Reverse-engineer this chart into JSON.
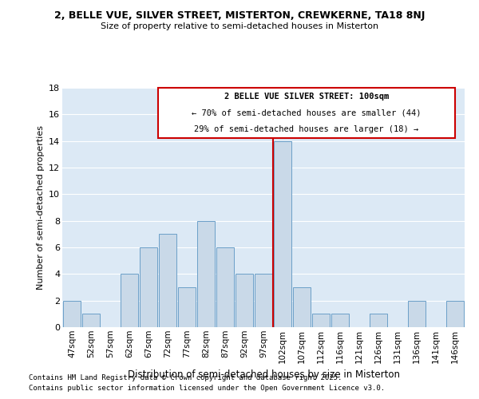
{
  "title1": "2, BELLE VUE, SILVER STREET, MISTERTON, CREWKERNE, TA18 8NJ",
  "title2": "Size of property relative to semi-detached houses in Misterton",
  "xlabel": "Distribution of semi-detached houses by size in Misterton",
  "ylabel": "Number of semi-detached properties",
  "categories": [
    "47sqm",
    "52sqm",
    "57sqm",
    "62sqm",
    "67sqm",
    "72sqm",
    "77sqm",
    "82sqm",
    "87sqm",
    "92sqm",
    "97sqm",
    "102sqm",
    "107sqm",
    "112sqm",
    "116sqm",
    "121sqm",
    "126sqm",
    "131sqm",
    "136sqm",
    "141sqm",
    "146sqm"
  ],
  "values": [
    2,
    1,
    0,
    4,
    6,
    7,
    3,
    8,
    6,
    4,
    4,
    14,
    3,
    1,
    1,
    0,
    1,
    0,
    2,
    0,
    2
  ],
  "bar_color": "#c9d9e8",
  "bar_edgecolor": "#6b9fc8",
  "vline_index": 11,
  "vline_color": "#cc0000",
  "annotation_title": "2 BELLE VUE SILVER STREET: 100sqm",
  "annotation_line2": "← 70% of semi-detached houses are smaller (44)",
  "annotation_line3": "29% of semi-detached houses are larger (18) →",
  "annotation_box_color": "#cc0000",
  "ylim": [
    0,
    18
  ],
  "yticks": [
    0,
    2,
    4,
    6,
    8,
    10,
    12,
    14,
    16,
    18
  ],
  "background_color": "#dce9f5",
  "grid_color": "#ffffff",
  "footnote1": "Contains HM Land Registry data © Crown copyright and database right 2025.",
  "footnote2": "Contains public sector information licensed under the Open Government Licence v3.0."
}
